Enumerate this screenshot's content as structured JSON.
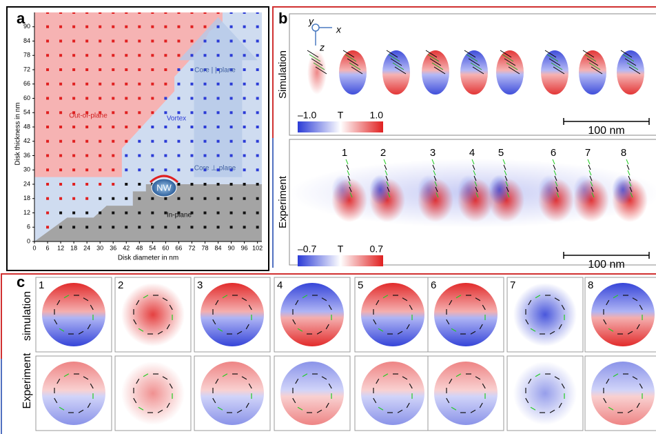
{
  "panel_a": {
    "label": "a",
    "x_axis_label": "Disk diameter in nm",
    "y_axis_label": "Disk thickness in nm",
    "xlim": [
      0,
      104
    ],
    "ylim": [
      0,
      96
    ],
    "xticks": [
      0,
      6,
      12,
      18,
      24,
      30,
      36,
      42,
      48,
      54,
      60,
      66,
      72,
      78,
      84,
      90,
      96,
      102
    ],
    "yticks": [
      0,
      6,
      12,
      18,
      24,
      30,
      36,
      42,
      48,
      54,
      60,
      66,
      72,
      78,
      84,
      90
    ],
    "regions": [
      "Out-of-plane",
      "Vortex",
      "In-plane"
    ],
    "annotations": [
      "Core | | plane",
      "Core ⊥ plane"
    ],
    "marker": "NW"
  },
  "panel_b": {
    "label": "b",
    "axes": [
      "y",
      "x",
      "z"
    ],
    "rows": [
      {
        "name": "Simulation",
        "colorbar": {
          "min": "–1.0",
          "unit": "T",
          "max": "1.0"
        },
        "scale_bar": "100 nm"
      },
      {
        "name": "Experiment",
        "colorbar": {
          "min": "–0.7",
          "unit": "T",
          "max": "0.7"
        },
        "scale_bar": "100 nm",
        "particle_labels": [
          "1",
          "2",
          "3",
          "4",
          "5",
          "6",
          "7",
          "8"
        ]
      }
    ]
  },
  "panel_c": {
    "label": "c",
    "row_labels": [
      "simulation",
      "Experiment"
    ],
    "panel_numbers": [
      "1",
      "2",
      "3",
      "4",
      "5",
      "6",
      "7",
      "8"
    ]
  }
}
